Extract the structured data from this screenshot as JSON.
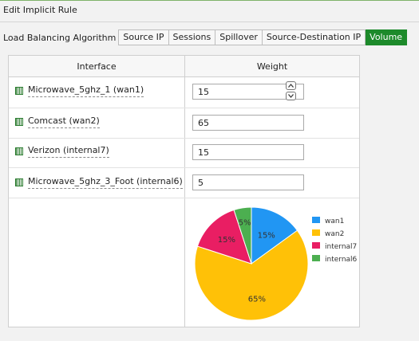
{
  "page": {
    "title": "Edit Implicit Rule"
  },
  "algorithm": {
    "label": "Load Balancing Algorithm",
    "options": [
      "Source IP",
      "Sessions",
      "Spillover",
      "Source-Destination IP",
      "Volume"
    ],
    "selected": "Volume"
  },
  "table": {
    "headers": {
      "interface": "Interface",
      "weight": "Weight"
    },
    "rows": [
      {
        "interface": "Microwave_5ghz_1 (wan1)",
        "weight": "15"
      },
      {
        "interface": "Comcast (wan2)",
        "weight": "65"
      },
      {
        "interface": "Verizon (internal7)",
        "weight": "15"
      },
      {
        "interface": "Microwave_5ghz_3_Foot (internal6)",
        "weight": "5"
      }
    ]
  },
  "colors": {
    "accent": "#1d8a2b",
    "wan1": "#2196f3",
    "wan2": "#ffc107",
    "internal7": "#e91e63",
    "internal6": "#4caf50"
  },
  "chart_data": {
    "type": "pie",
    "slices": [
      {
        "label": "wan1",
        "value": 15,
        "color": "#2196f3",
        "text": "15%"
      },
      {
        "label": "wan2",
        "value": 65,
        "color": "#ffc107",
        "text": "65%"
      },
      {
        "label": "internal7",
        "value": 15,
        "color": "#e91e63",
        "text": "15%"
      },
      {
        "label": "internal6",
        "value": 5,
        "color": "#4caf50",
        "text": "5%"
      }
    ],
    "legend": "right"
  }
}
